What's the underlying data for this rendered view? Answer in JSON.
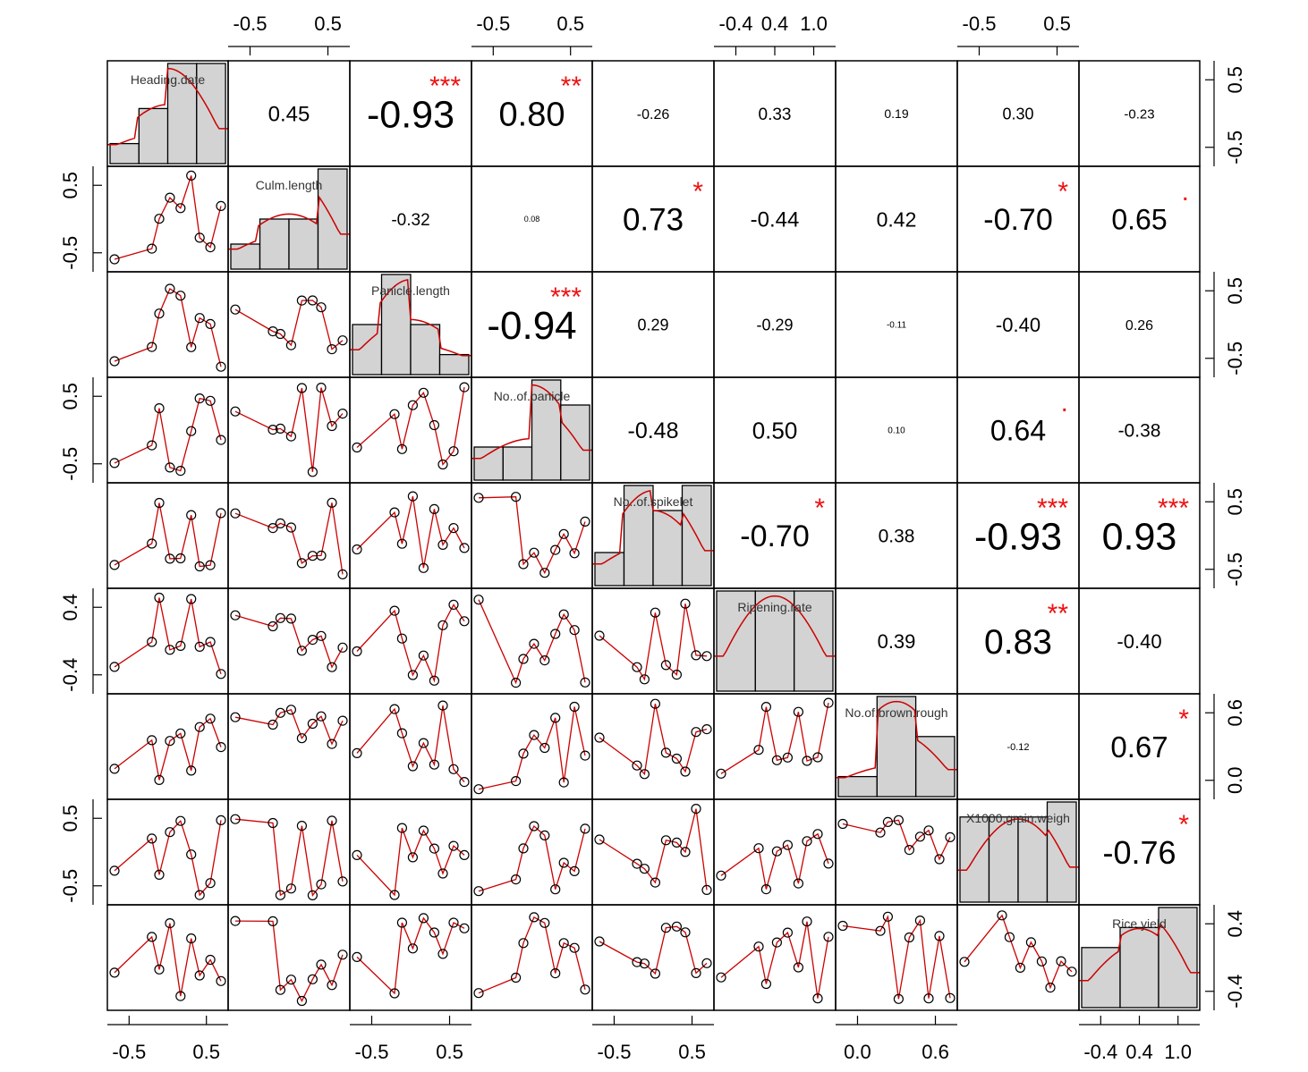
{
  "chart_data": {
    "type": "scatter-matrix",
    "variables": [
      "Heading.date",
      "Culm.length",
      "Panicle.length",
      "No..of.panicle",
      "No..of.spikelet",
      "Ripening.rate",
      "No.of.brown.rough",
      "X1000.grain.weigh",
      "Rice.yield"
    ],
    "correlations": [
      {
        "row": 0,
        "col": 1,
        "r": "0.45",
        "stars": ""
      },
      {
        "row": 0,
        "col": 2,
        "r": "-0.93",
        "stars": "***"
      },
      {
        "row": 0,
        "col": 3,
        "r": "0.80",
        "stars": "**"
      },
      {
        "row": 0,
        "col": 4,
        "r": "-0.26",
        "stars": ""
      },
      {
        "row": 0,
        "col": 5,
        "r": "0.33",
        "stars": ""
      },
      {
        "row": 0,
        "col": 6,
        "r": "0.19",
        "stars": ""
      },
      {
        "row": 0,
        "col": 7,
        "r": "0.30",
        "stars": ""
      },
      {
        "row": 0,
        "col": 8,
        "r": "-0.23",
        "stars": ""
      },
      {
        "row": 1,
        "col": 2,
        "r": "-0.32",
        "stars": ""
      },
      {
        "row": 1,
        "col": 3,
        "r": "0.08",
        "stars": ""
      },
      {
        "row": 1,
        "col": 4,
        "r": "0.73",
        "stars": "*"
      },
      {
        "row": 1,
        "col": 5,
        "r": "-0.44",
        "stars": ""
      },
      {
        "row": 1,
        "col": 6,
        "r": "0.42",
        "stars": ""
      },
      {
        "row": 1,
        "col": 7,
        "r": "-0.70",
        "stars": "*"
      },
      {
        "row": 1,
        "col": 8,
        "r": "0.65",
        "stars": "."
      },
      {
        "row": 2,
        "col": 3,
        "r": "-0.94",
        "stars": "***"
      },
      {
        "row": 2,
        "col": 4,
        "r": "0.29",
        "stars": ""
      },
      {
        "row": 2,
        "col": 5,
        "r": "-0.29",
        "stars": ""
      },
      {
        "row": 2,
        "col": 6,
        "r": "-0.11",
        "stars": ""
      },
      {
        "row": 2,
        "col": 7,
        "r": "-0.40",
        "stars": ""
      },
      {
        "row": 2,
        "col": 8,
        "r": "0.26",
        "stars": ""
      },
      {
        "row": 3,
        "col": 4,
        "r": "-0.48",
        "stars": ""
      },
      {
        "row": 3,
        "col": 5,
        "r": "0.50",
        "stars": ""
      },
      {
        "row": 3,
        "col": 6,
        "r": "0.10",
        "stars": ""
      },
      {
        "row": 3,
        "col": 7,
        "r": "0.64",
        "stars": "."
      },
      {
        "row": 3,
        "col": 8,
        "r": "-0.38",
        "stars": ""
      },
      {
        "row": 4,
        "col": 5,
        "r": "-0.70",
        "stars": "*"
      },
      {
        "row": 4,
        "col": 6,
        "r": "0.38",
        "stars": ""
      },
      {
        "row": 4,
        "col": 7,
        "r": "-0.93",
        "stars": "***"
      },
      {
        "row": 4,
        "col": 8,
        "r": "0.93",
        "stars": "***"
      },
      {
        "row": 5,
        "col": 6,
        "r": "0.39",
        "stars": ""
      },
      {
        "row": 5,
        "col": 7,
        "r": "0.83",
        "stars": "**"
      },
      {
        "row": 5,
        "col": 8,
        "r": "-0.40",
        "stars": ""
      },
      {
        "row": 6,
        "col": 7,
        "r": "-0.12",
        "stars": ""
      },
      {
        "row": 6,
        "col": 8,
        "r": "0.67",
        "stars": "*"
      },
      {
        "row": 7,
        "col": 8,
        "r": "-0.76",
        "stars": "*"
      }
    ],
    "histograms": [
      [
        0.2,
        0.55,
        1.0,
        1.0
      ],
      [
        0.25,
        0.5,
        0.5,
        1.0
      ],
      [
        0.5,
        1.0,
        0.5,
        0.2
      ],
      [
        0.33,
        0.33,
        1.0,
        0.75
      ],
      [
        0.33,
        1.0,
        0.75,
        1.0
      ],
      [
        1.0,
        1.0,
        1.0
      ],
      [
        0.2,
        1.0,
        0.6
      ],
      [
        0.85,
        0.85,
        0.85,
        1.0
      ],
      [
        0.6,
        0.8,
        1.0
      ]
    ],
    "points": [
      [
        0.0,
        0.0
      ],
      [
        0.35,
        0.92
      ],
      [
        0.42,
        0.62
      ],
      [
        0.52,
        0.42
      ],
      [
        0.62,
        0.58
      ],
      [
        0.72,
        0.25
      ],
      [
        0.8,
        1.0
      ],
      [
        0.9,
        0.15
      ],
      [
        1.0,
        0.72
      ]
    ],
    "axis_ticks": {
      "top": [
        {
          "col": 1,
          "labels": [
            "-0.5",
            "0.5"
          ]
        },
        {
          "col": 3,
          "labels": [
            "-0.5",
            "0.5"
          ]
        },
        {
          "col": 5,
          "labels": [
            "-0.4",
            "0.4",
            "1.0"
          ]
        },
        {
          "col": 7,
          "labels": [
            "-0.5",
            "0.5"
          ]
        }
      ],
      "bottom": [
        {
          "col": 0,
          "labels": [
            "-0.5",
            "0.5"
          ]
        },
        {
          "col": 2,
          "labels": [
            "-0.5",
            "0.5"
          ]
        },
        {
          "col": 4,
          "labels": [
            "-0.5",
            "0.5"
          ]
        },
        {
          "col": 6,
          "labels": [
            "0.0",
            "0.6"
          ]
        },
        {
          "col": 8,
          "labels": [
            "-0.4",
            "0.4",
            "1.0"
          ]
        }
      ],
      "left": [
        {
          "row": 1,
          "labels": [
            "-0.5",
            "0.5"
          ]
        },
        {
          "row": 3,
          "labels": [
            "-0.5",
            "0.5"
          ]
        },
        {
          "row": 5,
          "labels": [
            "-0.4",
            "0.4"
          ]
        },
        {
          "row": 7,
          "labels": [
            "-0.5",
            "0.5"
          ]
        }
      ],
      "right": [
        {
          "row": 0,
          "labels": [
            "-0.5",
            "0.5"
          ]
        },
        {
          "row": 2,
          "labels": [
            "-0.5",
            "0.5"
          ]
        },
        {
          "row": 4,
          "labels": [
            "-0.5",
            "0.5"
          ]
        },
        {
          "row": 6,
          "labels": [
            "0.0",
            "0.6"
          ]
        },
        {
          "row": 8,
          "labels": [
            "-0.4",
            "0.4"
          ]
        }
      ]
    },
    "colors": {
      "smooth_line": "#cc0000",
      "stars": "#ee1111",
      "bar_fill": "#d3d3d3",
      "axis": "#000000"
    }
  }
}
